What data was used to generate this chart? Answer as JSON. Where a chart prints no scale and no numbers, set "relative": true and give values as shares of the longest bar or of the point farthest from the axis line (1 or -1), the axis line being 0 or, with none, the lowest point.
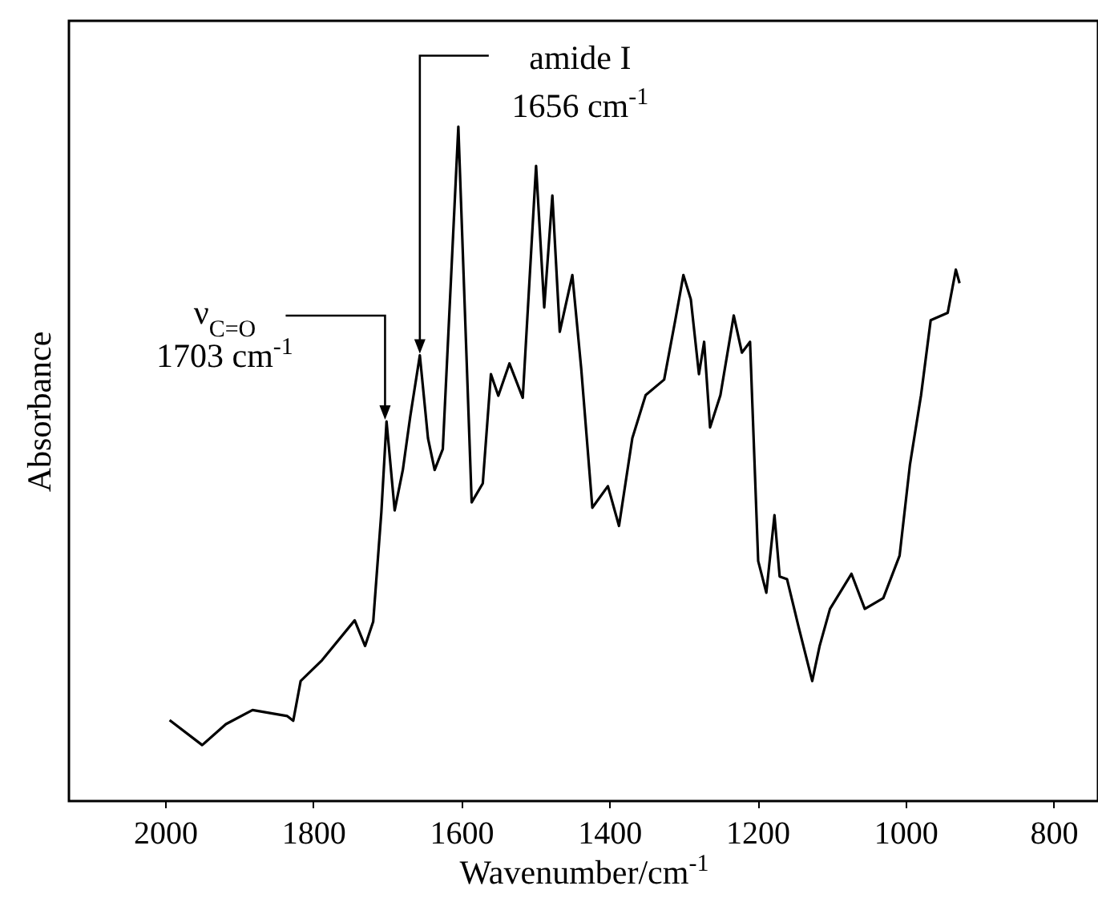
{
  "chart_data": {
    "type": "line",
    "relative": true,
    "xlabel": "Wavenumber/cm$^{-1}$",
    "ylabel": "Absorbance",
    "xlim": [
      2130,
      740
    ],
    "xticks": [
      2000,
      1800,
      1600,
      1400,
      1200,
      1000,
      800
    ],
    "color": "#000000",
    "grid": false,
    "x": [
      1994,
      1950,
      1918,
      1882,
      1835,
      1827,
      1817,
      1788,
      1744,
      1730,
      1719,
      1708,
      1701,
      1690,
      1679,
      1669,
      1656,
      1645,
      1636,
      1625,
      1604,
      1586,
      1571,
      1560,
      1550,
      1535,
      1517,
      1499,
      1488,
      1477,
      1467,
      1450,
      1438,
      1423,
      1402,
      1387,
      1369,
      1351,
      1326,
      1311,
      1300,
      1290,
      1279,
      1272,
      1264,
      1250,
      1232,
      1221,
      1210,
      1199,
      1188,
      1177,
      1170,
      1160,
      1145,
      1126,
      1116,
      1102,
      1073,
      1055,
      1030,
      1008,
      994,
      979,
      966,
      943,
      932,
      927
    ],
    "values": [
      0.12,
      0.083,
      0.114,
      0.135,
      0.126,
      0.119,
      0.178,
      0.209,
      0.268,
      0.23,
      0.266,
      0.428,
      0.563,
      0.431,
      0.491,
      0.57,
      0.661,
      0.538,
      0.491,
      0.522,
      1,
      0.443,
      0.471,
      0.633,
      0.601,
      0.649,
      0.598,
      0.942,
      0.732,
      0.898,
      0.696,
      0.78,
      0.641,
      0.435,
      0.467,
      0.408,
      0.538,
      0.602,
      0.625,
      0.713,
      0.78,
      0.744,
      0.633,
      0.681,
      0.554,
      0.602,
      0.72,
      0.665,
      0.681,
      0.356,
      0.309,
      0.424,
      0.333,
      0.329,
      0.261,
      0.178,
      0.23,
      0.285,
      0.337,
      0.285,
      0.301,
      0.364,
      0.499,
      0.602,
      0.713,
      0.724,
      0.788,
      0.768
    ],
    "annotations": [
      {
        "text": "ν$_{C=O}$\n1703 cm$^{-1}$",
        "x": 1703,
        "y": 0.563
      },
      {
        "text": "amide I\n1656 cm$^{-1}$",
        "x": 1656,
        "y": 0.661
      }
    ]
  }
}
